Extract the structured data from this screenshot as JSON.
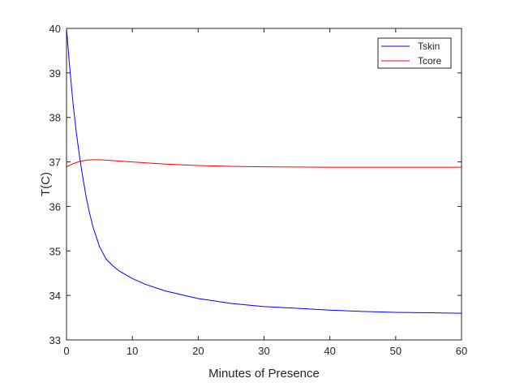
{
  "chart_data": {
    "type": "line",
    "xlabel": "Minutes of Presence",
    "ylabel": "T(C)",
    "xlim": [
      0,
      60
    ],
    "ylim": [
      33,
      40
    ],
    "xticks": [
      0,
      10,
      20,
      30,
      40,
      50,
      60
    ],
    "yticks": [
      33,
      34,
      35,
      36,
      37,
      38,
      39,
      40
    ],
    "grid": false,
    "legend_position": "top-right",
    "series": [
      {
        "name": "Tskin",
        "color": "#0000ff",
        "x": [
          0,
          0.5,
          1,
          1.5,
          2,
          2.5,
          3,
          3.5,
          4,
          5,
          6,
          7,
          8,
          10,
          12,
          15,
          20,
          25,
          30,
          35,
          40,
          45,
          50,
          55,
          60
        ],
        "y": [
          40,
          39.1,
          38.3,
          37.65,
          37.1,
          36.63,
          36.2,
          35.85,
          35.55,
          35.1,
          34.82,
          34.67,
          34.55,
          34.38,
          34.25,
          34.1,
          33.93,
          33.82,
          33.75,
          33.71,
          33.67,
          33.64,
          33.62,
          33.61,
          33.6
        ]
      },
      {
        "name": "Tcore",
        "color": "#ff0000",
        "x": [
          0,
          1,
          2,
          3,
          4,
          5,
          6,
          8,
          10,
          15,
          20,
          25,
          30,
          40,
          50,
          60
        ],
        "y": [
          36.89,
          36.96,
          37.01,
          37.04,
          37.05,
          37.05,
          37.04,
          37.02,
          37.0,
          36.95,
          36.92,
          36.9,
          36.89,
          36.88,
          36.88,
          36.88
        ]
      }
    ]
  }
}
